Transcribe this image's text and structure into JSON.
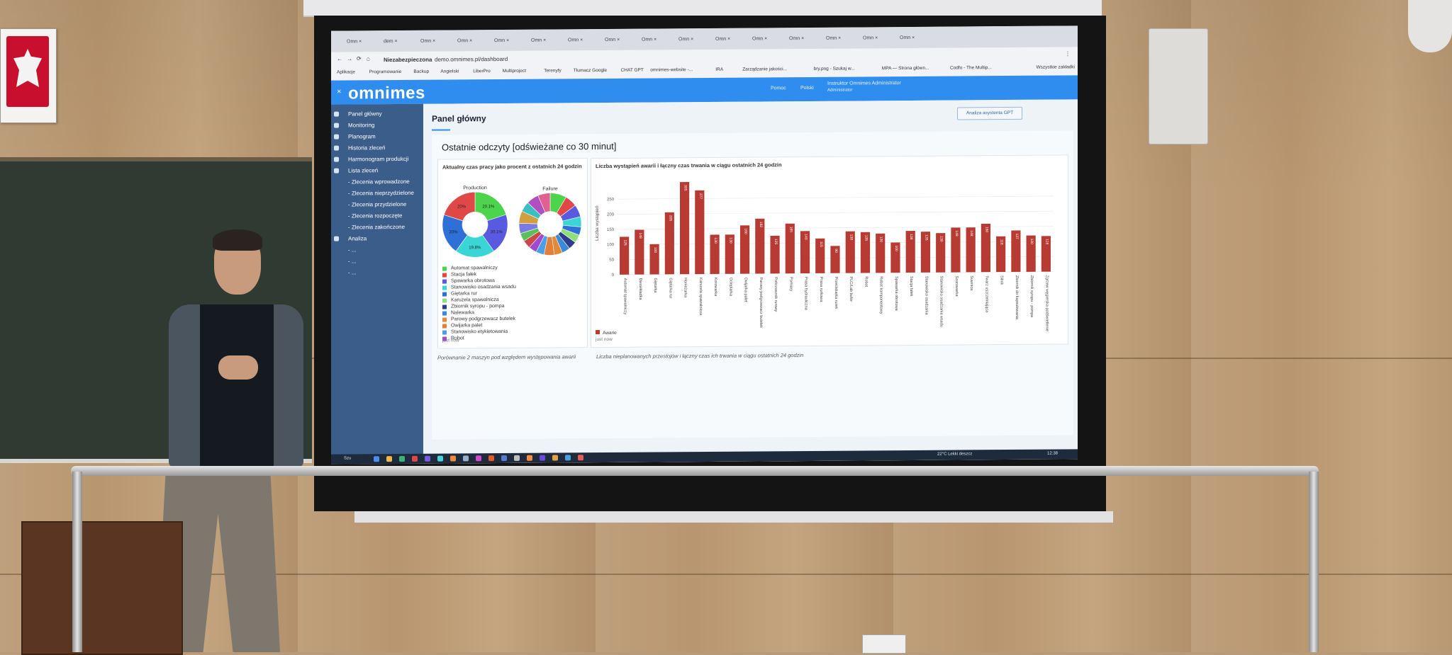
{
  "browser": {
    "tabs": [
      "Omn",
      "dem",
      "Omn",
      "Omn",
      "Omn",
      "Omn",
      "Omn",
      "Omn",
      "Omn",
      "Omn",
      "Omn",
      "Omn",
      "Omn",
      "Omn",
      "Omn",
      "Omn"
    ],
    "url_prefix": "Niezabezpieczona",
    "url": "demo.omnimes.pl/dashboard",
    "bookmarks": [
      "Aplikacje",
      "Programowanie",
      "Backup",
      "Angielski",
      "LiberPro",
      "Multiproject",
      "Terenyfy",
      "Tłumacz Google",
      "CHAT GPT",
      "omnimes-website -...",
      "IRA",
      "Zarządzanie jakości...",
      "bry.png - Szukaj w...",
      "MPA — Strona główn...",
      "Codfo - The Multip...",
      "Wszystkie zakładki"
    ]
  },
  "app": {
    "logo": "omnimes",
    "help_label": "Pomoc",
    "language": "Polski",
    "user_name": "Instruktor Omnimes Administrator",
    "user_role": "Administrator"
  },
  "sidebar": {
    "items": [
      "Panel główny",
      "Monitoring",
      "Planogram",
      "Historia zleceń",
      "Harmonogram produkcji",
      "Lista zleceń",
      "- Zlecenia wprowadzone",
      "- Zlecenia nieprzydzielone",
      "- Zlecenia przydzielone",
      "- Zlecenia rozpoczęte",
      "- Zlecenia zakończone",
      "Analiza",
      "- ...",
      "- ...",
      "- ..."
    ]
  },
  "page": {
    "title": "Panel główny",
    "gpt_button": "Analiza asystenta GPT",
    "section_title": "Ostatnie odczyty [odświeżane co 30 minut]"
  },
  "card_left": {
    "title": "Aktualny czas pracy jako procent z ostatnich 24 godzin",
    "pie1_title": "Production",
    "pie2_title": "Failure",
    "pie1_labels": [
      "20.1%",
      "20.1%",
      "19.8%",
      "20%",
      "20%"
    ],
    "legend": [
      {
        "label": "Automat spawalniczy",
        "color": "#4cd44c"
      },
      {
        "label": "Stacja fałek",
        "color": "#e04848"
      },
      {
        "label": "Spawarka obrotowa",
        "color": "#5a5ae0"
      },
      {
        "label": "Stanowisko osadzania wsadu",
        "color": "#3ad6d6"
      },
      {
        "label": "Giętarka rur",
        "color": "#2f6fd8"
      },
      {
        "label": "Karuzela spawalnicza",
        "color": "#8fe07a"
      },
      {
        "label": "Zbiornik syropu - pompa",
        "color": "#2d3d8a"
      },
      {
        "label": "Nalewarka",
        "color": "#3b8ad8"
      },
      {
        "label": "Parowy podgrzewacz butelek",
        "color": "#e28a3a"
      },
      {
        "label": "Owijarka palet",
        "color": "#e0803a"
      },
      {
        "label": "Stanowisko etykietowania",
        "color": "#4aa0e8"
      },
      {
        "label": "Robot",
        "color": "#a04ad0"
      }
    ],
    "footer": "just now"
  },
  "card_right": {
    "title": "Liczba wystąpień awarii i łączny czas trwania w ciągu ostatnich 24 godzin",
    "legend_label": "Awarie",
    "footer": "just now"
  },
  "chart_data": {
    "type": "bar",
    "title": "Liczba wystąpień awarii i łączny czas trwania w ciągu ostatnich 24 godzin",
    "ylabel": "Liczba wystąpień",
    "ylim": [
      0,
      300
    ],
    "yticks": [
      0,
      50,
      100,
      150,
      200,
      250
    ],
    "categories": [
      "Automat spawalniczy",
      "Dwuwkładka",
      "Giętarka",
      "Giętarka rur",
      "Honieżarka",
      "Karuzela spawalnicza",
      "Korowarka",
      "Ocieplarka",
      "Owijarka palet",
      "Parowy podgrzewacz butelek",
      "Pończosznik rurowy",
      "Pomiary",
      "Prasa hydrauliczna",
      "Prasa rurkowa",
      "Przeciskarka rurek",
      "PLC/Lab bufor",
      "Robot",
      "Robot komponentowy",
      "Spawarka obrotowa",
      "Stacja fałek",
      "Stanowisko osadzania",
      "Stanowisko osadzania wsadu",
      "Szorowarka",
      "Suwnica",
      "Twarz uszczelniająca",
      "Silnik",
      "Zbiornik do kapsułowania",
      "Zbiornik syropu - pompa",
      "Zgrzew węgierska podświetlenie"
    ],
    "series": [
      {
        "name": "Awarie",
        "values": [
          125,
          148,
          100,
          205,
          305,
          277,
          130,
          130,
          160,
          182,
          125,
          165,
          140,
          115,
          90,
          138,
          135,
          130,
          100,
          138,
          135,
          130,
          148,
          148,
          160,
          118,
          137,
          120,
          118
        ]
      }
    ],
    "legend_position": "bottom-left"
  },
  "bottom_cards": {
    "left_title": "Porównanie 2 maszyn pod względem występowania awarii",
    "right_title": "Liczba nieplanowanych przestojów i łączny czas ich trwania w ciągu ostatnich 24 godzin"
  },
  "taskbar": {
    "search": "Szu",
    "weather": "22°C Lekki deszcz",
    "time": "12:38"
  },
  "colors": {
    "appbar": "#2f8df0",
    "sidebar": "#3a5d8a",
    "bar": "#b73b33"
  }
}
